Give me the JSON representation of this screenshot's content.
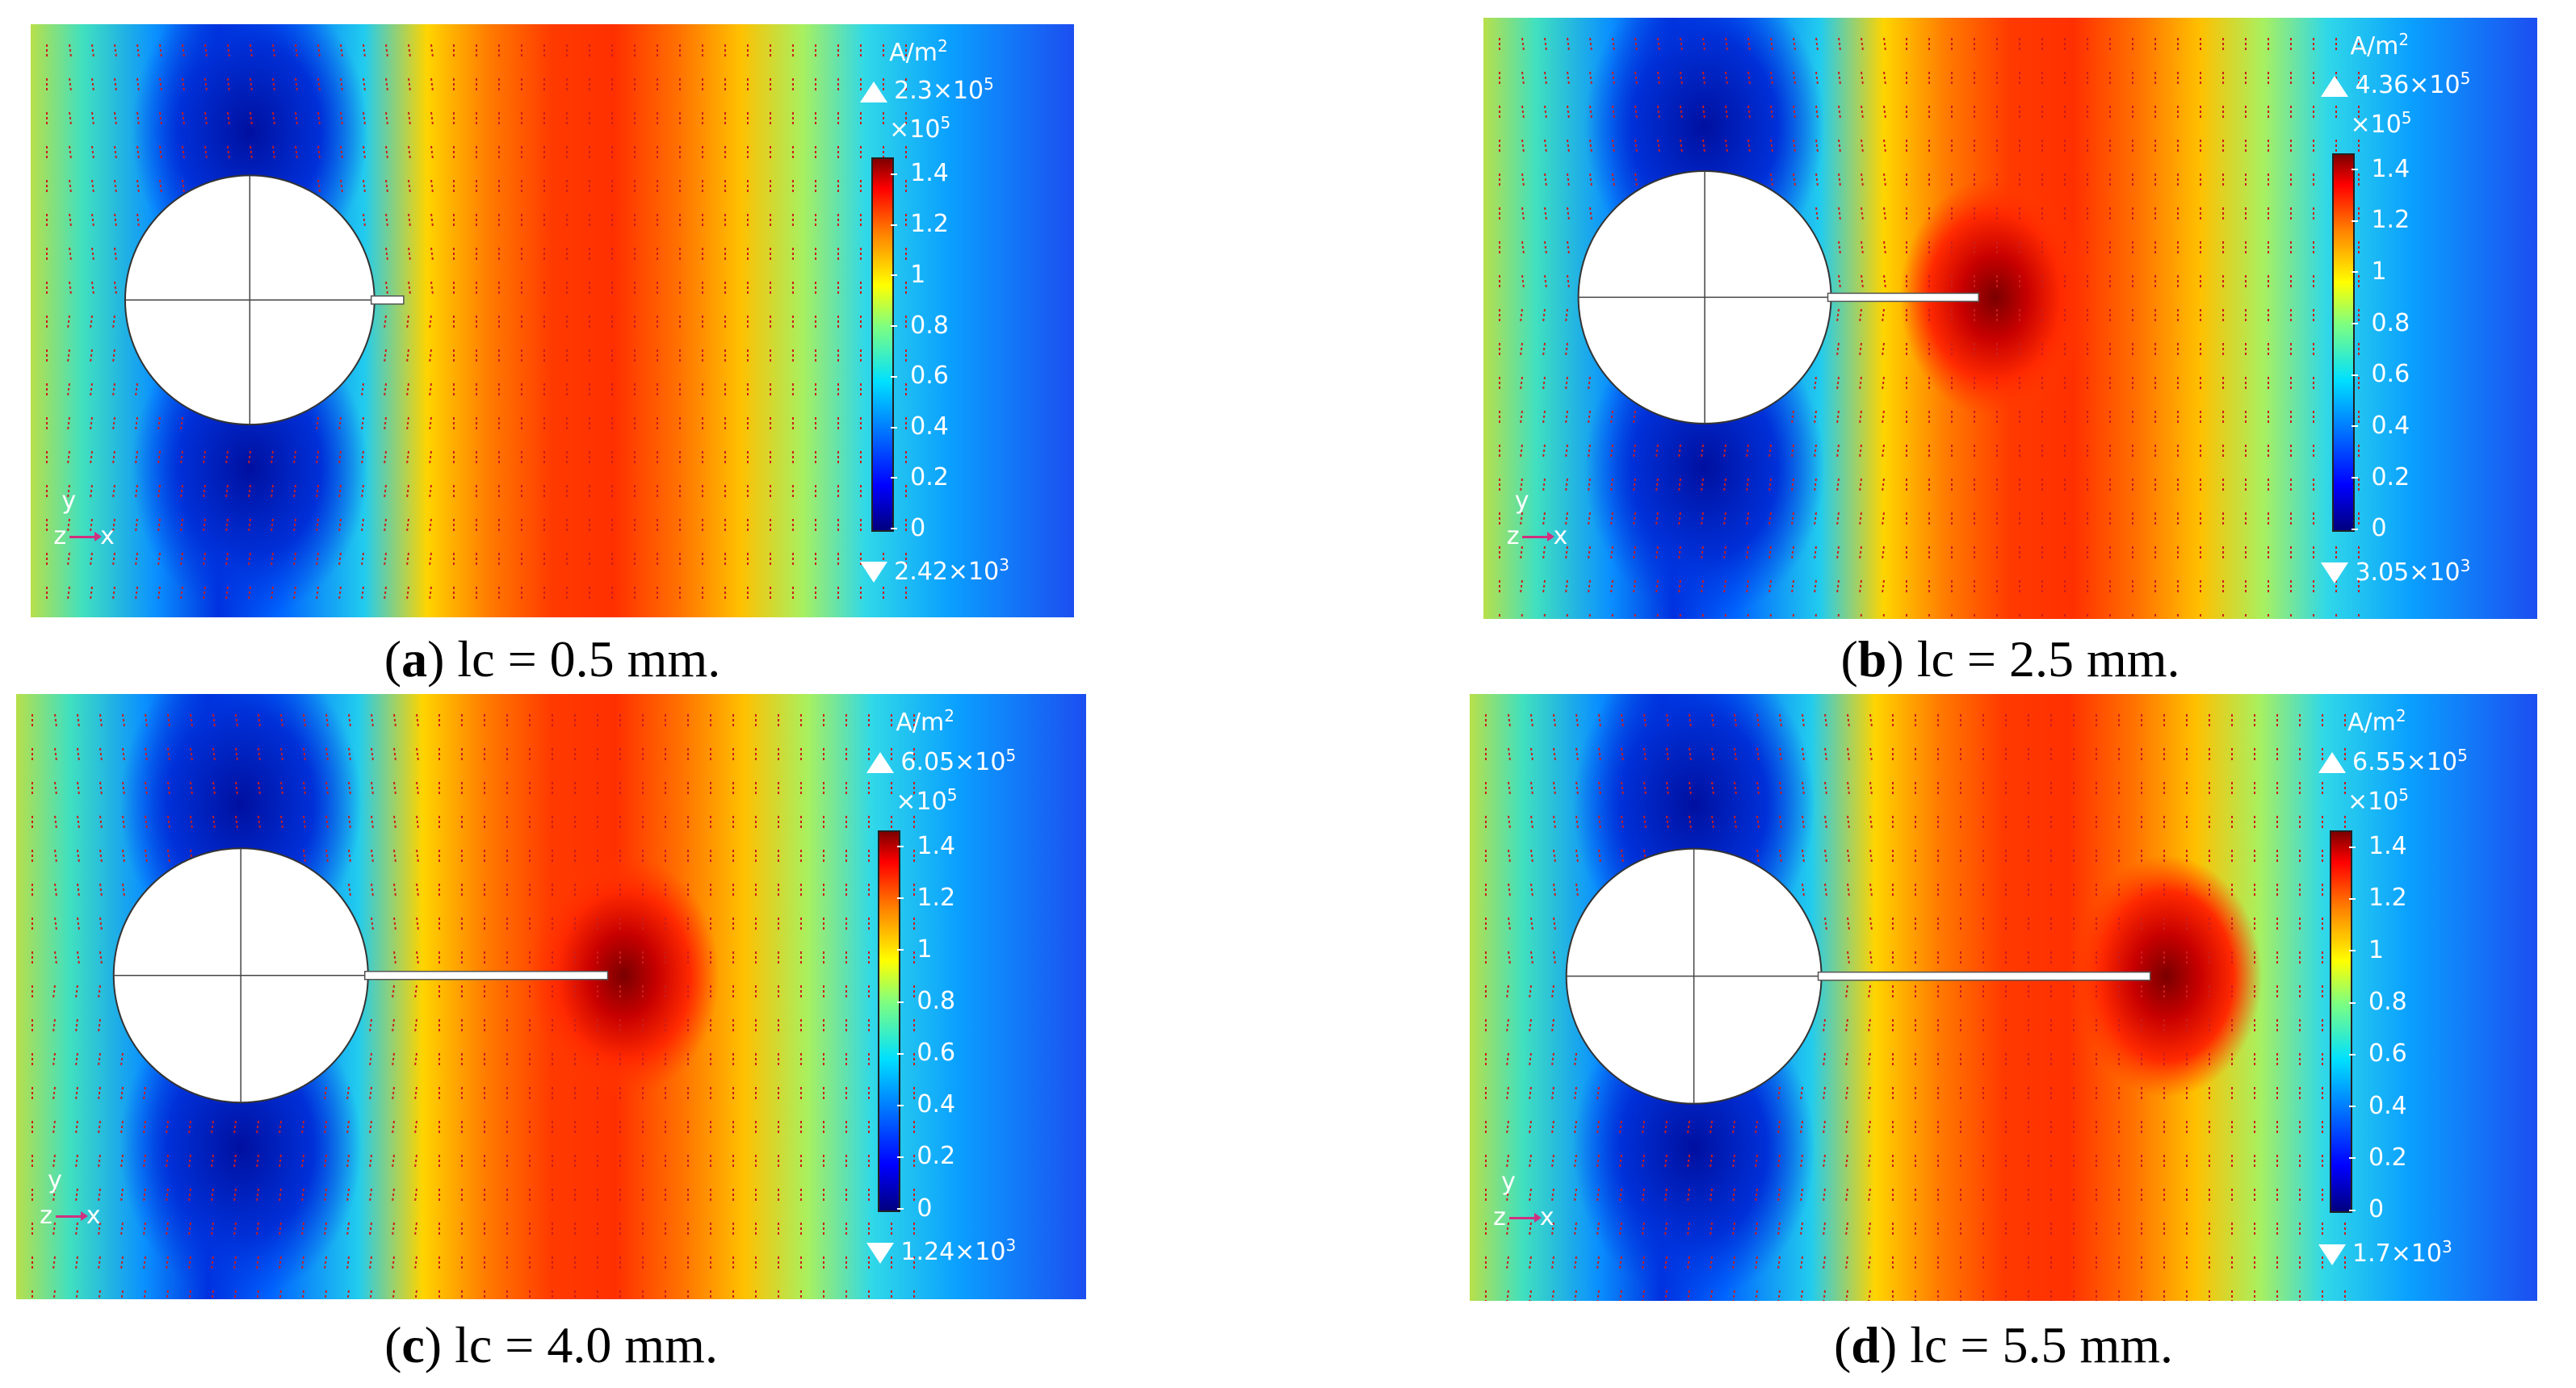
{
  "colors": {
    "field_low": "#0000c8",
    "field_high": "#ff3800",
    "arrow": "#cc1d1d",
    "colorbar_top": "#7f0000",
    "colorbar_bottom": "#00007f"
  },
  "panels": [
    {
      "caption": {
        "letter": "a",
        "text": "lc = 0.5 mm."
      },
      "legend": {
        "unit": "A/m",
        "unit_exp": "2",
        "max_mant": "2.3×10",
        "max_exp": "5",
        "scale_mant": "×10",
        "scale_exp": "5",
        "min_mant": "2.42×10",
        "min_exp": "3",
        "ticks": [
          "1.4",
          "1.2",
          "1",
          "0.8",
          "0.6",
          "0.4",
          "0.2",
          "0"
        ]
      },
      "crack_length_frac": 0.1,
      "axes": {
        "y": "y",
        "z": "z",
        "x": "x"
      }
    },
    {
      "caption": {
        "letter": "b",
        "text": "lc = 2.5 mm."
      },
      "legend": {
        "unit": "A/m",
        "unit_exp": "2",
        "max_mant": "4.36×10",
        "max_exp": "5",
        "scale_mant": "×10",
        "scale_exp": "5",
        "min_mant": "3.05×10",
        "min_exp": "3",
        "ticks": [
          "1.4",
          "1.2",
          "1",
          "0.8",
          "0.6",
          "0.4",
          "0.2",
          "0"
        ]
      },
      "crack_length_frac": 0.5,
      "axes": {
        "y": "y",
        "z": "z",
        "x": "x"
      }
    },
    {
      "caption": {
        "letter": "c",
        "text": "lc = 4.0 mm."
      },
      "legend": {
        "unit": "A/m",
        "unit_exp": "2",
        "max_mant": "6.05×10",
        "max_exp": "5",
        "scale_mant": "×10",
        "scale_exp": "5",
        "min_mant": "1.24×10",
        "min_exp": "3",
        "ticks": [
          "1.4",
          "1.2",
          "1",
          "0.8",
          "0.6",
          "0.4",
          "0.2",
          "0"
        ]
      },
      "crack_length_frac": 0.8,
      "axes": {
        "y": "y",
        "z": "z",
        "x": "x"
      }
    },
    {
      "caption": {
        "letter": "d",
        "text": "lc = 5.5 mm."
      },
      "legend": {
        "unit": "A/m",
        "unit_exp": "2",
        "max_mant": "6.55×10",
        "max_exp": "5",
        "scale_mant": "×10",
        "scale_exp": "5",
        "min_mant": "1.7×10",
        "min_exp": "3",
        "ticks": [
          "1.4",
          "1.2",
          "1",
          "0.8",
          "0.6",
          "0.4",
          "0.2",
          "0"
        ]
      },
      "crack_length_frac": 1.1,
      "axes": {
        "y": "y",
        "z": "z",
        "x": "x"
      }
    }
  ]
}
